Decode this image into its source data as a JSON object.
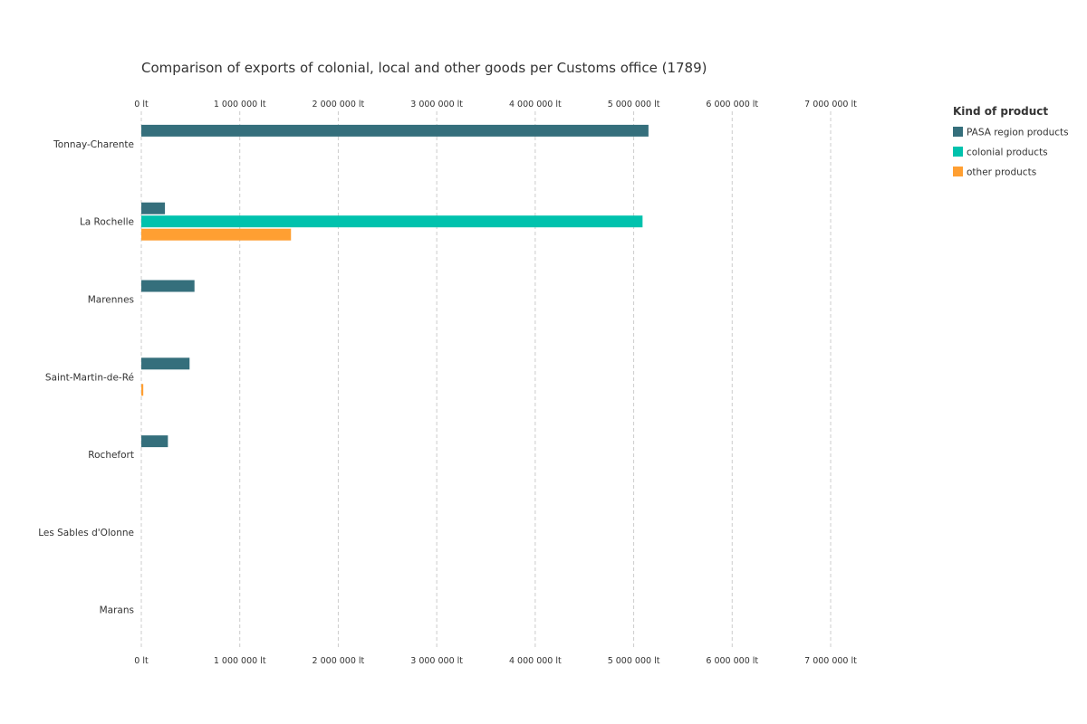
{
  "chart_data": {
    "type": "bar",
    "orientation": "horizontal",
    "title": "Comparison of exports of colonial, local and other goods per Customs office (1789)",
    "xlabel": "",
    "ylabel": "",
    "xlim": [
      0,
      7000000
    ],
    "x_ticks": [
      0,
      1000000,
      2000000,
      3000000,
      4000000,
      5000000,
      6000000,
      7000000
    ],
    "x_tick_labels": [
      "0 lt",
      "1 000 000 lt",
      "2 000 000 lt",
      "3 000 000 lt",
      "4 000 000 lt",
      "5 000 000 lt",
      "6 000 000 lt",
      "7 000 000 lt"
    ],
    "grid": true,
    "legend_position": "right",
    "legend_title": "Kind of product",
    "categories": [
      "Tonnay-Charente",
      "La Rochelle",
      "Marennes",
      "Saint-Martin-de-Ré",
      "Rochefort",
      "Les Sables d'Olonne",
      "Marans"
    ],
    "series": [
      {
        "name": "PASA region products",
        "color": "#356f7c",
        "values": [
          5150000,
          240000,
          540000,
          490000,
          270000,
          0,
          0
        ]
      },
      {
        "name": "colonial products",
        "color": "#00c2ad",
        "values": [
          0,
          5090000,
          0,
          0,
          0,
          0,
          0
        ]
      },
      {
        "name": "other products",
        "color": "#ff9f32",
        "values": [
          0,
          1520000,
          0,
          20000,
          0,
          0,
          0
        ]
      }
    ]
  }
}
